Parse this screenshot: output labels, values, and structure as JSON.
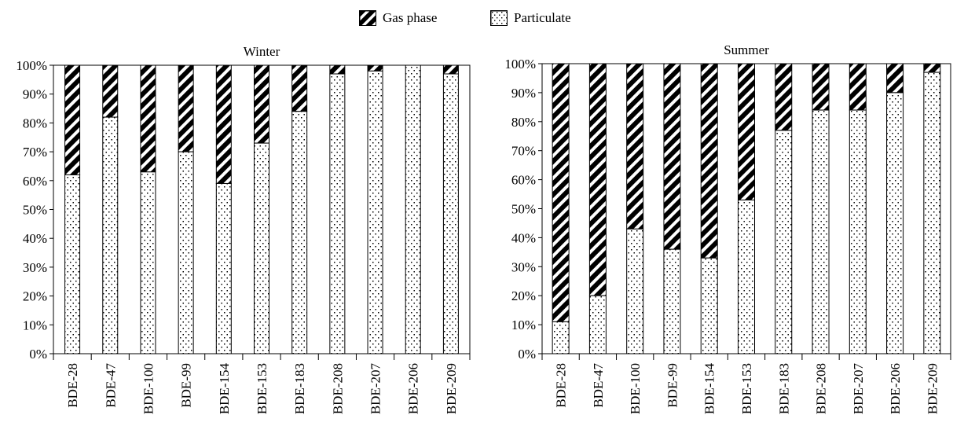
{
  "legend": {
    "gas_label": "Gas phase",
    "particulate_label": "Particulate"
  },
  "colors": {
    "ink": "#000000",
    "paper": "#ffffff"
  },
  "chart_data": [
    {
      "type": "bar",
      "stacked": true,
      "title": "Winter",
      "categories": [
        "BDE-28",
        "BDE-47",
        "BDE-100",
        "BDE-99",
        "BDE-154",
        "BDE-153",
        "BDE-183",
        "BDE-208",
        "BDE-207",
        "BDE-206",
        "BDE-209"
      ],
      "series": [
        {
          "name": "Particulate",
          "values": [
            62,
            82,
            63,
            70,
            59,
            73,
            84,
            97,
            98,
            100,
            97
          ]
        },
        {
          "name": "Gas phase",
          "values": [
            38,
            18,
            37,
            30,
            41,
            27,
            16,
            3,
            2,
            0,
            3
          ]
        }
      ],
      "yticks": [
        "0%",
        "10%",
        "20%",
        "30%",
        "40%",
        "50%",
        "60%",
        "70%",
        "80%",
        "90%",
        "100%"
      ],
      "ylim": [
        0,
        100
      ]
    },
    {
      "type": "bar",
      "stacked": true,
      "title": "Summer",
      "categories": [
        "BDE-28",
        "BDE-47",
        "BDE-100",
        "BDE-99",
        "BDE-154",
        "BDE-153",
        "BDE-183",
        "BDE-208",
        "BDE-207",
        "BDE-206",
        "BDE-209"
      ],
      "series": [
        {
          "name": "Particulate",
          "values": [
            11,
            20,
            43,
            36,
            33,
            53,
            77,
            84,
            84,
            90,
            97
          ]
        },
        {
          "name": "Gas phase",
          "values": [
            89,
            80,
            57,
            64,
            67,
            47,
            23,
            16,
            16,
            10,
            3
          ]
        }
      ],
      "yticks": [
        "0%",
        "10%",
        "20%",
        "30%",
        "40%",
        "50%",
        "60%",
        "70%",
        "80%",
        "90%",
        "100%"
      ],
      "ylim": [
        0,
        100
      ]
    }
  ]
}
